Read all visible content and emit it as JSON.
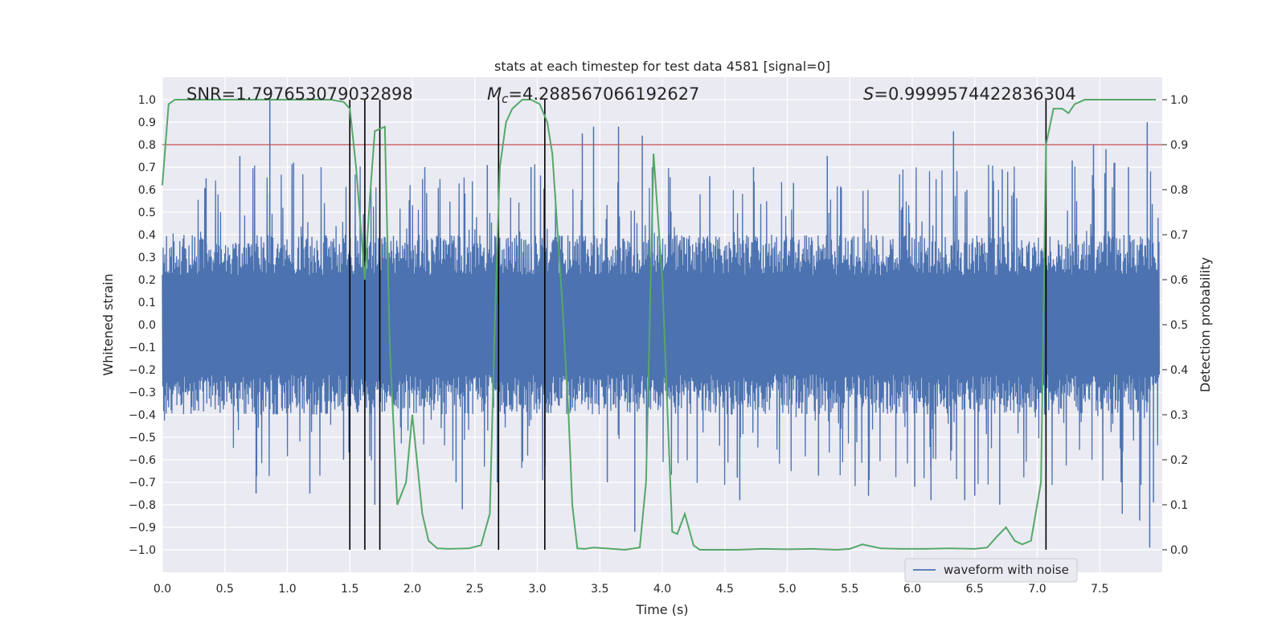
{
  "chart_data": {
    "type": "line",
    "title": "stats at each timestep for test data 4581 [signal=0]",
    "xlabel": "Time (s)",
    "ylabel": "Whitened strain",
    "y2label": "Detection probability",
    "xlim": [
      0.0,
      8.0
    ],
    "ylim": [
      -1.1,
      1.1
    ],
    "y2lim": [
      -0.05,
      1.05
    ],
    "xticks": [
      "0.0",
      "0.5",
      "1.0",
      "1.5",
      "2.0",
      "2.5",
      "3.0",
      "3.5",
      "4.0",
      "4.5",
      "5.0",
      "5.5",
      "6.0",
      "6.5",
      "7.0",
      "7.5"
    ],
    "yticks": [
      "1.0",
      "0.9",
      "0.8",
      "0.7",
      "0.6",
      "0.5",
      "0.4",
      "0.3",
      "0.2",
      "0.1",
      "0.0",
      "−0.1",
      "−0.2",
      "−0.3",
      "−0.4",
      "−0.5",
      "−0.6",
      "−0.7",
      "−0.8",
      "−0.9",
      "−1.0"
    ],
    "y2ticks": [
      "1.0",
      "0.9",
      "0.8",
      "0.7",
      "0.6",
      "0.5",
      "0.4",
      "0.3",
      "0.2",
      "0.1",
      "0.0"
    ],
    "grid": true,
    "legend": {
      "placement": "lower-right",
      "entries": [
        "waveform with noise"
      ]
    },
    "annotations": {
      "snr": "SNR=1.797653079032898",
      "mc_symbol": "M",
      "mc_sub": "c",
      "mc_value": "=4.288567066192627",
      "s_symbol": "S",
      "s_value": "=0.9999574422836304"
    },
    "colors": {
      "waveform": "#4c72b0",
      "probability": "#55a868",
      "threshold": "#c44e52",
      "markers": "#000000",
      "background": "#eaeaf2",
      "grid": "#ffffff"
    },
    "threshold": 0.9,
    "markers_x": [
      1.5,
      1.62,
      1.74,
      2.69,
      3.06,
      7.07
    ],
    "series": [
      {
        "name": "waveform with noise",
        "axis": "left",
        "style": "dense noise, spikes to ±1.0",
        "band": 0.4,
        "spikes": [
          [
            0.86,
            1.0
          ],
          [
            0.35,
            0.65
          ],
          [
            0.62,
            0.75
          ],
          [
            0.75,
            -0.75
          ],
          [
            1.05,
            0.72
          ],
          [
            1.18,
            -0.75
          ],
          [
            1.45,
            -0.6
          ],
          [
            1.7,
            -0.8
          ],
          [
            2.1,
            0.7
          ],
          [
            2.35,
            -0.7
          ],
          [
            2.4,
            -0.82
          ],
          [
            2.6,
            0.71
          ],
          [
            2.68,
            -0.7
          ],
          [
            2.95,
            0.7
          ],
          [
            3.36,
            0.85
          ],
          [
            3.45,
            0.88
          ],
          [
            3.56,
            -0.7
          ],
          [
            3.65,
            0.88
          ],
          [
            3.78,
            -0.92
          ],
          [
            3.84,
            0.84
          ],
          [
            3.92,
            0.7
          ],
          [
            4.38,
            0.66
          ],
          [
            4.6,
            -0.68
          ],
          [
            4.62,
            -0.78
          ],
          [
            4.73,
            0.7
          ],
          [
            5.05,
            0.63
          ],
          [
            5.25,
            -0.67
          ],
          [
            5.32,
            0.75
          ],
          [
            5.65,
            -0.76
          ],
          [
            6.02,
            -0.72
          ],
          [
            6.15,
            -0.78
          ],
          [
            6.33,
            0.86
          ],
          [
            6.42,
            -0.78
          ],
          [
            6.5,
            -0.76
          ],
          [
            6.7,
            -0.8
          ],
          [
            6.72,
            0.69
          ],
          [
            7.28,
            0.73
          ],
          [
            7.45,
            0.8
          ],
          [
            7.55,
            0.78
          ],
          [
            7.62,
            0.72
          ],
          [
            7.68,
            -0.84
          ],
          [
            7.73,
            0.7
          ],
          [
            7.82,
            -0.87
          ],
          [
            7.88,
            0.9
          ],
          [
            7.9,
            -0.99
          ],
          [
            7.93,
            -0.79
          ]
        ]
      },
      {
        "name": "detection probability",
        "axis": "right",
        "x": [
          0.0,
          0.05,
          0.1,
          0.2,
          0.4,
          0.6,
          0.8,
          1.0,
          1.2,
          1.35,
          1.45,
          1.5,
          1.55,
          1.62,
          1.66,
          1.7,
          1.78,
          1.82,
          1.88,
          1.95,
          2.0,
          2.08,
          2.13,
          2.2,
          2.3,
          2.45,
          2.55,
          2.62,
          2.66,
          2.7,
          2.75,
          2.8,
          2.88,
          2.95,
          3.02,
          3.08,
          3.12,
          3.2,
          3.25,
          3.28,
          3.32,
          3.38,
          3.45,
          3.55,
          3.7,
          3.82,
          3.87,
          3.93,
          4.0,
          4.08,
          4.12,
          4.18,
          4.25,
          4.3,
          4.4,
          4.6,
          4.8,
          5.0,
          5.2,
          5.4,
          5.5,
          5.6,
          5.75,
          5.9,
          6.1,
          6.3,
          6.5,
          6.6,
          6.68,
          6.75,
          6.82,
          6.88,
          6.95,
          7.03,
          7.07,
          7.13,
          7.2,
          7.25,
          7.3,
          7.38,
          7.5,
          7.7,
          7.95
        ],
        "y": [
          0.81,
          0.99,
          1.0,
          1.0,
          1.0,
          1.0,
          1.0,
          1.0,
          1.0,
          1.0,
          0.995,
          0.98,
          0.85,
          0.6,
          0.78,
          0.93,
          0.94,
          0.45,
          0.1,
          0.15,
          0.3,
          0.08,
          0.02,
          0.003,
          0.002,
          0.003,
          0.01,
          0.08,
          0.5,
          0.85,
          0.95,
          0.98,
          1.0,
          1.0,
          0.99,
          0.95,
          0.88,
          0.55,
          0.3,
          0.1,
          0.003,
          0.002,
          0.005,
          0.003,
          0.0,
          0.005,
          0.15,
          0.88,
          0.6,
          0.04,
          0.035,
          0.08,
          0.01,
          0.0,
          0.0,
          0.0,
          0.002,
          0.001,
          0.002,
          0.0,
          0.002,
          0.012,
          0.003,
          0.002,
          0.002,
          0.003,
          0.002,
          0.005,
          0.03,
          0.05,
          0.02,
          0.012,
          0.02,
          0.15,
          0.9,
          0.98,
          0.98,
          0.97,
          0.99,
          1.0,
          1.0,
          1.0,
          1.0
        ]
      }
    ]
  }
}
